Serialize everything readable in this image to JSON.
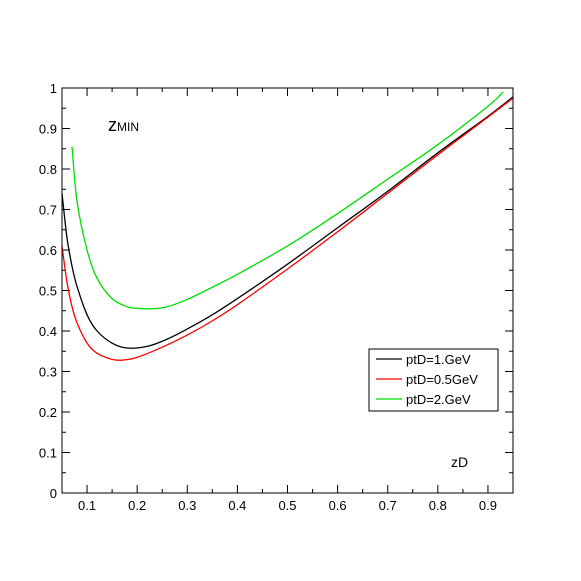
{
  "chart_data": {
    "type": "line",
    "title": "",
    "annotation_main": "z",
    "annotation_sub": "MIN",
    "xlabel": "zD",
    "ylabel": "",
    "xlim": [
      0.05,
      0.95
    ],
    "ylim": [
      0,
      1
    ],
    "xticks": [
      0.1,
      0.2,
      0.3,
      0.4,
      0.5,
      0.6,
      0.7,
      0.8,
      0.9
    ],
    "xtick_labels": [
      "0.1",
      "0.2",
      "0.3",
      "0.4",
      "0.5",
      "0.6",
      "0.7",
      "0.8",
      "0.9"
    ],
    "yticks": [
      0,
      0.1,
      0.2,
      0.3,
      0.4,
      0.5,
      0.6,
      0.7,
      0.8,
      0.9,
      1
    ],
    "ytick_labels": [
      "0",
      "0.1",
      "0.2",
      "0.3",
      "0.4",
      "0.5",
      "0.6",
      "0.7",
      "0.8",
      "0.9",
      "1"
    ],
    "grid": false,
    "legend_position": "right",
    "series": [
      {
        "name": "ptD=1.GeV",
        "color": "#000000",
        "x": [
          0.05,
          0.06,
          0.07,
          0.08,
          0.1,
          0.12,
          0.15,
          0.18,
          0.22,
          0.26,
          0.3,
          0.35,
          0.4,
          0.5,
          0.6,
          0.7,
          0.8,
          0.9,
          0.95
        ],
        "y": [
          0.74,
          0.63,
          0.56,
          0.51,
          0.44,
          0.4,
          0.37,
          0.358,
          0.362,
          0.38,
          0.405,
          0.44,
          0.48,
          0.565,
          0.655,
          0.745,
          0.84,
          0.93,
          0.978
        ]
      },
      {
        "name": "ptD=0.5GeV",
        "color": "#ff0000",
        "x": [
          0.05,
          0.06,
          0.07,
          0.08,
          0.1,
          0.12,
          0.15,
          0.17,
          0.2,
          0.25,
          0.3,
          0.35,
          0.4,
          0.5,
          0.6,
          0.7,
          0.8,
          0.9,
          0.95
        ],
        "y": [
          0.61,
          0.52,
          0.46,
          0.42,
          0.37,
          0.345,
          0.33,
          0.328,
          0.335,
          0.36,
          0.39,
          0.425,
          0.465,
          0.553,
          0.645,
          0.74,
          0.835,
          0.928,
          0.975
        ]
      },
      {
        "name": "ptD=2.GeV",
        "color": "#00dd00",
        "x": [
          0.07,
          0.08,
          0.1,
          0.12,
          0.15,
          0.18,
          0.2,
          0.23,
          0.26,
          0.3,
          0.35,
          0.4,
          0.5,
          0.6,
          0.7,
          0.8,
          0.9,
          0.93
        ],
        "y": [
          0.855,
          0.72,
          0.6,
          0.53,
          0.48,
          0.46,
          0.456,
          0.455,
          0.46,
          0.478,
          0.508,
          0.54,
          0.61,
          0.69,
          0.775,
          0.86,
          0.955,
          0.99
        ]
      }
    ]
  }
}
